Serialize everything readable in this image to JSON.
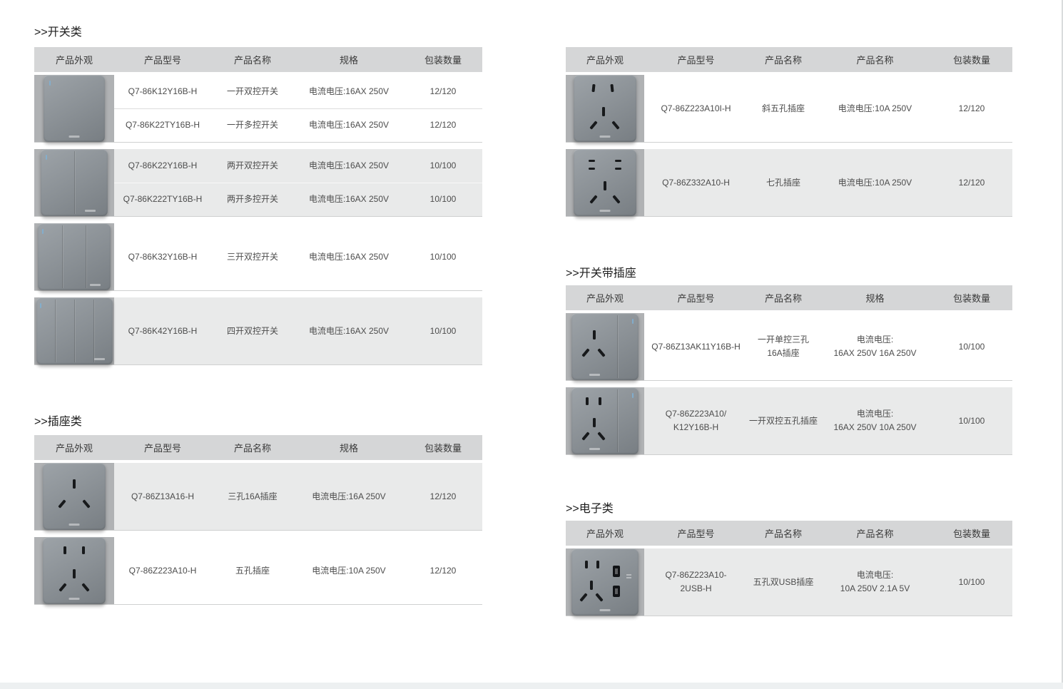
{
  "palette": {
    "header_bg": "#d5d6d7",
    "image_cell_bg": "#b0b2b4",
    "row_gray": "#e9eaea",
    "row_white": "#ffffff",
    "panel_gray": "#8b9196",
    "footer_strip": "#edf0f1"
  },
  "sections": [
    {
      "heading": ">>开关类",
      "columns": [
        "产品外观",
        "产品型号",
        "产品名称",
        "规格",
        "包装数量"
      ],
      "groups": [
        {
          "image": "switch-1gang",
          "shade": "white",
          "rows": [
            {
              "model": [
                "Q7-86K12Y16B-H"
              ],
              "name": [
                "一开双控开关"
              ],
              "spec": [
                "电流电压:16AX 250V"
              ],
              "qty": "12/120"
            },
            {
              "model": [
                "Q7-86K22TY16B-H"
              ],
              "name": [
                "一开多控开关"
              ],
              "spec": [
                "电流电压:16AX 250V"
              ],
              "qty": "12/120"
            }
          ]
        },
        {
          "image": "switch-2gang",
          "shade": "gray",
          "rows": [
            {
              "model": [
                "Q7-86K22Y16B-H"
              ],
              "name": [
                "两开双控开关"
              ],
              "spec": [
                "电流电压:16AX 250V"
              ],
              "qty": "10/100"
            },
            {
              "model": [
                "Q7-86K222TY16B-H"
              ],
              "name": [
                "两开多控开关"
              ],
              "spec": [
                "电流电压:16AX 250V"
              ],
              "qty": "10/100"
            }
          ]
        },
        {
          "image": "switch-3gang",
          "shade": "white",
          "rows": [
            {
              "model": [
                "Q7-86K32Y16B-H"
              ],
              "name": [
                "三开双控开关"
              ],
              "spec": [
                "电流电压:16AX 250V"
              ],
              "qty": "10/100"
            }
          ]
        },
        {
          "image": "switch-4gang",
          "shade": "gray",
          "rows": [
            {
              "model": [
                "Q7-86K42Y16B-H"
              ],
              "name": [
                "四开双控开关"
              ],
              "spec": [
                "电流电压:16AX 250V"
              ],
              "qty": "10/100"
            }
          ]
        }
      ]
    },
    {
      "heading": ">>插座类",
      "columns": [
        "产品外观",
        "产品型号",
        "产品名称",
        "规格",
        "包装数量"
      ],
      "groups": [
        {
          "image": "socket-3hole",
          "shade": "gray",
          "rows": [
            {
              "model": [
                "Q7-86Z13A16-H"
              ],
              "name": [
                "三孔16A插座"
              ],
              "spec": [
                "电流电压:16A 250V"
              ],
              "qty": "12/120"
            }
          ]
        },
        {
          "image": "socket-5hole",
          "shade": "white",
          "rows": [
            {
              "model": [
                "Q7-86Z223A10-H"
              ],
              "name": [
                "五孔插座"
              ],
              "spec": [
                "电流电压:10A 250V"
              ],
              "qty": "12/120"
            }
          ]
        }
      ]
    },
    {
      "heading": "",
      "columns": [
        "产品外观",
        "产品型号",
        "产品名称",
        "产品名称",
        "包装数量"
      ],
      "groups": [
        {
          "image": "socket-5hole-angled",
          "shade": "white",
          "rows": [
            {
              "model": [
                "Q7-86Z223A10I-H"
              ],
              "name": [
                "斜五孔插座"
              ],
              "spec": [
                "电流电压:10A 250V"
              ],
              "qty": "12/120"
            }
          ]
        },
        {
          "image": "socket-7hole",
          "shade": "gray",
          "rows": [
            {
              "model": [
                "Q7-86Z332A10-H"
              ],
              "name": [
                "七孔插座"
              ],
              "spec": [
                "电流电压:10A 250V"
              ],
              "qty": "12/120"
            }
          ]
        }
      ]
    },
    {
      "heading": ">>开关带插座",
      "columns": [
        "产品外观",
        "产品型号",
        "产品名称",
        "规格",
        "包装数量"
      ],
      "groups": [
        {
          "image": "combo-switch-3hole",
          "shade": "white",
          "rows": [
            {
              "model": [
                "Q7-86Z13AK11Y16B-H"
              ],
              "name": [
                "一开单控三孔",
                "16A插座"
              ],
              "spec": [
                "电流电压:",
                "16AX 250V  16A 250V"
              ],
              "qty": "10/100"
            }
          ]
        },
        {
          "image": "combo-switch-5hole",
          "shade": "gray",
          "rows": [
            {
              "model": [
                "Q7-86Z223A10/",
                "K12Y16B-H"
              ],
              "name": [
                "一开双控五孔插座"
              ],
              "spec": [
                "电流电压:",
                "16AX 250V  10A 250V"
              ],
              "qty": "10/100"
            }
          ]
        }
      ]
    },
    {
      "heading": ">>电子类",
      "columns": [
        "产品外观",
        "产品型号",
        "产品名称",
        "产品名称",
        "包装数量"
      ],
      "groups": [
        {
          "image": "socket-5hole-2usb",
          "shade": "gray",
          "rows": [
            {
              "model": [
                "Q7-86Z223A10-",
                "2USB-H"
              ],
              "name": [
                "五孔双USB插座"
              ],
              "spec": [
                "电流电压:",
                "10A 250V  2.1A 5V"
              ],
              "qty": "10/100"
            }
          ]
        }
      ]
    }
  ]
}
